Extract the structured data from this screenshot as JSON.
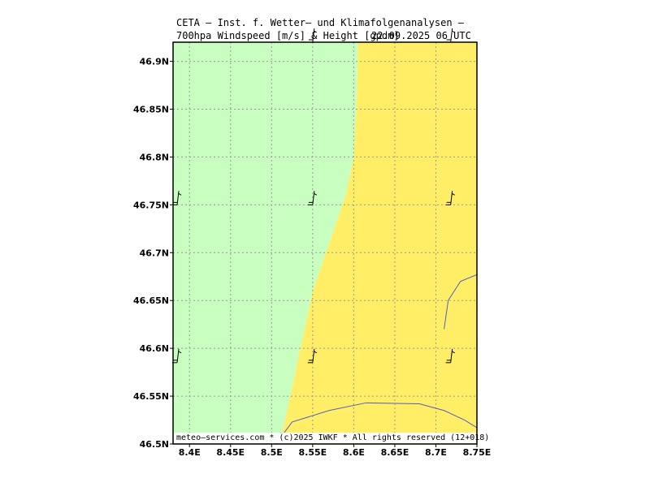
{
  "title": {
    "line1": "CETA – Inst. f. Wetter– und Klimafolgenanalysen –",
    "line2_left": "700hpa Windspeed [m/s] & Height [gpdm]",
    "line2_right": "22.09.2025 06 UTC"
  },
  "credit": "meteo–services.com * (c)2025 IWKF * All rights reserved (12+018)",
  "map": {
    "lon_range": [
      8.38,
      8.75
    ],
    "lat_range": [
      46.5,
      46.92
    ],
    "lon_ticks": [
      8.4,
      8.45,
      8.5,
      8.55,
      8.6,
      8.65,
      8.7,
      8.75
    ],
    "lon_tick_labels": [
      "8.4E",
      "8.45E",
      "8.5E",
      "8.55E",
      "8.6E",
      "8.65E",
      "8.7E",
      "8.75E"
    ],
    "lat_ticks": [
      46.5,
      46.55,
      46.6,
      46.65,
      46.7,
      46.75,
      46.8,
      46.85,
      46.9
    ],
    "lat_tick_labels": [
      "46.5N",
      "46.55N",
      "46.6N",
      "46.65N",
      "46.7N",
      "46.75N",
      "46.8N",
      "46.85N",
      "46.9N"
    ],
    "grid": true,
    "colors": {
      "green_zone": "#c8ffc0",
      "yellow_zone": "#ffee66",
      "border_line": "#5060c0",
      "grid": "#999999"
    },
    "zone_boundary": [
      [
        8.605,
        46.92
      ],
      [
        8.604,
        46.87
      ],
      [
        8.6,
        46.8
      ],
      [
        8.59,
        46.76
      ],
      [
        8.57,
        46.71
      ],
      [
        8.55,
        46.66
      ],
      [
        8.535,
        46.6
      ],
      [
        8.52,
        46.54
      ],
      [
        8.51,
        46.5
      ]
    ],
    "borders": [
      [
        [
          8.505,
          46.5
        ],
        [
          8.525,
          46.523
        ],
        [
          8.57,
          46.535
        ],
        [
          8.615,
          46.543
        ],
        [
          8.68,
          46.542
        ],
        [
          8.71,
          46.535
        ],
        [
          8.735,
          46.525
        ],
        [
          8.75,
          46.517
        ]
      ],
      [
        [
          8.71,
          46.62
        ],
        [
          8.715,
          46.65
        ],
        [
          8.73,
          46.67
        ],
        [
          8.75,
          46.677
        ]
      ]
    ],
    "wind_barbs": [
      {
        "lon": 8.385,
        "lat": 46.75
      },
      {
        "lon": 8.55,
        "lat": 46.75
      },
      {
        "lon": 8.718,
        "lat": 46.75
      },
      {
        "lon": 8.385,
        "lat": 46.585
      },
      {
        "lon": 8.55,
        "lat": 46.585
      },
      {
        "lon": 8.718,
        "lat": 46.585
      },
      {
        "lon": 8.55,
        "lat": 46.92
      },
      {
        "lon": 8.718,
        "lat": 46.92
      }
    ]
  }
}
